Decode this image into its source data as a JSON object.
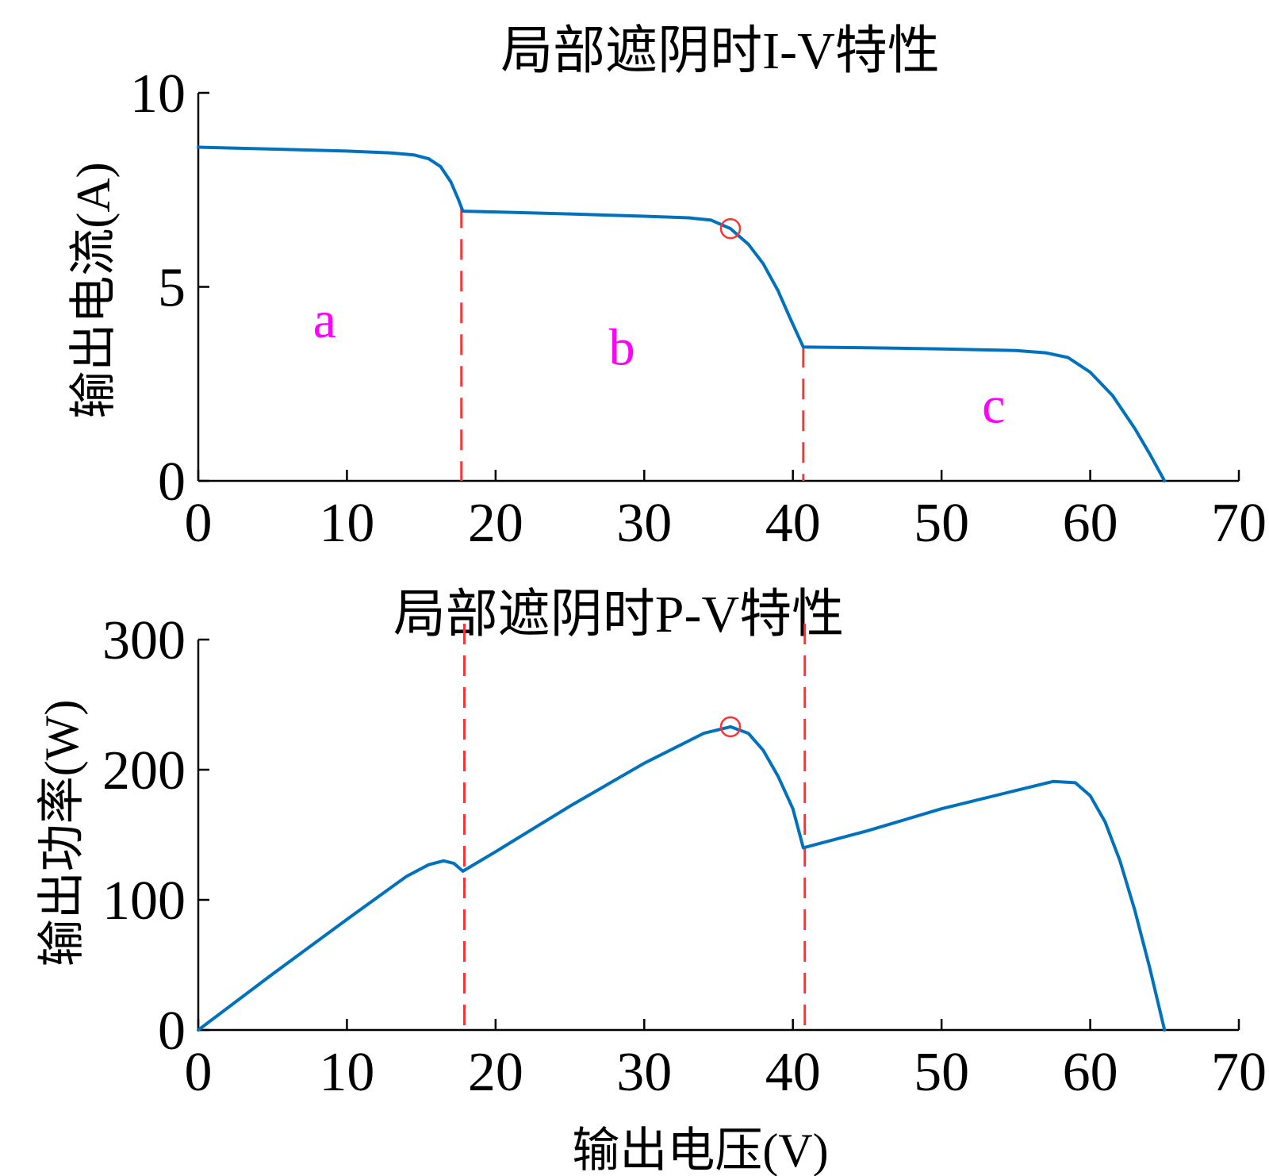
{
  "colors": {
    "curve": "#0072BD",
    "boundary": "#FF3333",
    "marker": "#FF3333",
    "region_label": "#FF00FF",
    "axis": "#000000"
  },
  "xlabel": "输出电压(V)",
  "chart_data": [
    {
      "type": "line",
      "title": "局部遮阴时I-V特性",
      "ylabel": "输出电流(A)",
      "xlim": [
        0,
        70
      ],
      "ylim": [
        0,
        10
      ],
      "xticks": [
        "0",
        "10",
        "20",
        "30",
        "40",
        "50",
        "60",
        "70"
      ],
      "yticks": [
        "0",
        "5",
        "10"
      ],
      "region_labels": [
        {
          "text": "a",
          "x": 8.5,
          "y": 3.7
        },
        {
          "text": "b",
          "x": 28.5,
          "y": 3.0
        },
        {
          "text": "c",
          "x": 53.5,
          "y": 1.5
        }
      ],
      "boundaries_x": [
        17.7,
        40.7
      ],
      "mpp": {
        "x": 35.8,
        "y": 6.5
      },
      "series": [
        {
          "x": [
            0,
            5,
            10,
            13,
            14.5,
            15.5,
            16.3,
            17,
            17.5,
            17.8,
            20,
            25,
            30,
            33,
            34.5,
            35.8,
            37,
            38,
            39,
            39.8,
            40.4,
            40.7,
            45,
            50,
            55,
            57,
            58.5,
            60,
            61.5,
            63,
            64,
            65
          ],
          "y": [
            8.6,
            8.55,
            8.5,
            8.45,
            8.4,
            8.3,
            8.1,
            7.7,
            7.25,
            6.95,
            6.93,
            6.88,
            6.82,
            6.78,
            6.72,
            6.5,
            6.1,
            5.6,
            4.9,
            4.2,
            3.7,
            3.45,
            3.43,
            3.4,
            3.36,
            3.3,
            3.18,
            2.8,
            2.2,
            1.35,
            0.7,
            0
          ]
        }
      ]
    },
    {
      "type": "line",
      "title": "局部遮阴时P-V特性",
      "ylabel": "输出功率(W)",
      "xlim": [
        0,
        70
      ],
      "ylim": [
        0,
        300
      ],
      "xticks": [
        "0",
        "10",
        "20",
        "30",
        "40",
        "50",
        "60",
        "70"
      ],
      "yticks": [
        "0",
        "100",
        "200",
        "300"
      ],
      "boundaries_x": [
        17.9,
        40.8
      ],
      "mpp": {
        "x": 35.8,
        "y": 233
      },
      "series": [
        {
          "x": [
            0,
            5,
            10,
            14,
            15.5,
            16.5,
            17.2,
            17.8,
            20,
            25,
            30,
            34,
            35.8,
            37,
            38,
            39,
            40,
            40.7,
            45,
            50,
            55,
            57.5,
            59,
            60,
            61,
            62,
            63,
            64,
            65
          ],
          "y": [
            0,
            43,
            85,
            118,
            127,
            130,
            128,
            122,
            137,
            172,
            205,
            228,
            233,
            228,
            215,
            195,
            170,
            140,
            153,
            170,
            184,
            191,
            190,
            180,
            160,
            130,
            92,
            48,
            0
          ]
        }
      ]
    }
  ]
}
